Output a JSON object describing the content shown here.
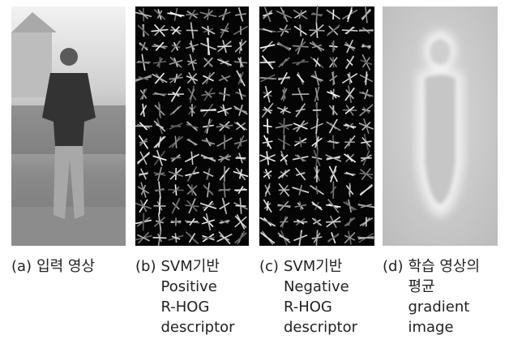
{
  "panels": [
    {
      "label": "(a)",
      "lines": [
        "입력 영상"
      ]
    },
    {
      "label": "(b)",
      "lines": [
        "SVM기반",
        "Positive",
        "R-HOG",
        "descriptor"
      ]
    },
    {
      "label": "(c)",
      "lines": [
        "SVM기반",
        "Negative",
        "R-HOG",
        "descriptor"
      ]
    },
    {
      "label": "(d)",
      "lines": [
        "학습 영상의",
        "평균",
        "gradient",
        "image"
      ]
    }
  ]
}
